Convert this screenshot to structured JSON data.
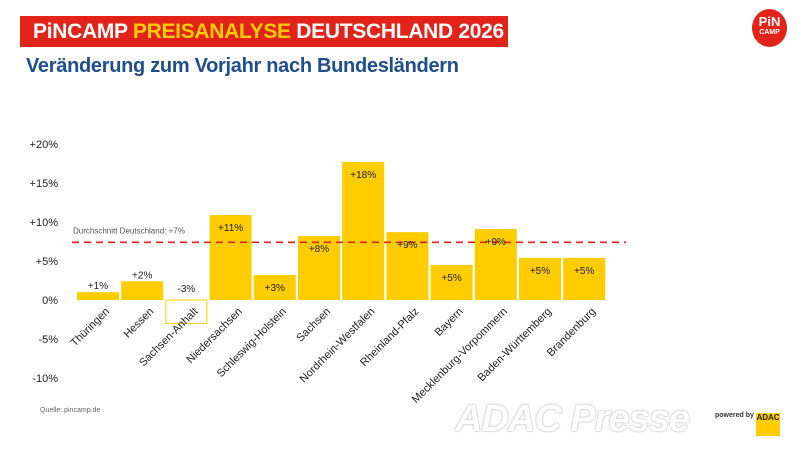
{
  "header": {
    "title_part1": "PiNCAMP ",
    "title_part2": "PREISANALYSE",
    "title_part3": " DEUTSCHLAND 2026",
    "subtitle": "Veränderung zum Vorjahr nach Bundesländern",
    "logo_line1": "PiN",
    "logo_line2": "CAMP"
  },
  "footer": {
    "source": "Quelle: pincamp.de",
    "watermark": "ADAC Presse",
    "powered_by": "powered by",
    "adac_logo": "ADAC"
  },
  "colors": {
    "bar": "#ffcc00",
    "average_line": "#e2231a",
    "banner": "#e2231a",
    "subtitle": "#1f4e8c",
    "highlight": "#ffcc00"
  },
  "chart_data": {
    "type": "bar",
    "title": "Veränderung zum Vorjahr nach Bundesländern",
    "xlabel": "",
    "ylabel": "",
    "ylim": [
      -10,
      20
    ],
    "yticks": [
      20,
      15,
      10,
      5,
      0,
      -5,
      -10
    ],
    "ytick_labels": [
      "+20%",
      "+15%",
      "+10%",
      "+5%",
      "0%",
      "-5%",
      "-10%"
    ],
    "grid": false,
    "categories": [
      "Thüringen",
      "Hessen",
      "Sachsen-Anhalt",
      "Niedersachsen",
      "Schleswig-Holstein",
      "Sachsen",
      "Nordrhein-Westfalen",
      "Rheinland-Pfalz",
      "Bayern",
      "Mecklenburg-Vorpommern",
      "Baden-Württemberg",
      "Brandenburg"
    ],
    "values": [
      1.0,
      2.4,
      -3.0,
      10.9,
      3.2,
      8.2,
      17.7,
      8.7,
      4.5,
      9.1,
      5.4,
      5.4
    ],
    "data_labels": [
      "+1%",
      "+2%",
      "-3%",
      "+11%",
      "+3%",
      "+8%",
      "+18%",
      "+9%",
      "+5%",
      "+9%",
      "+5%",
      "+5%"
    ],
    "reference_line": {
      "value": 7.4,
      "label": "Durchschnitt Deutschland: +7%",
      "style": "dashed"
    }
  }
}
